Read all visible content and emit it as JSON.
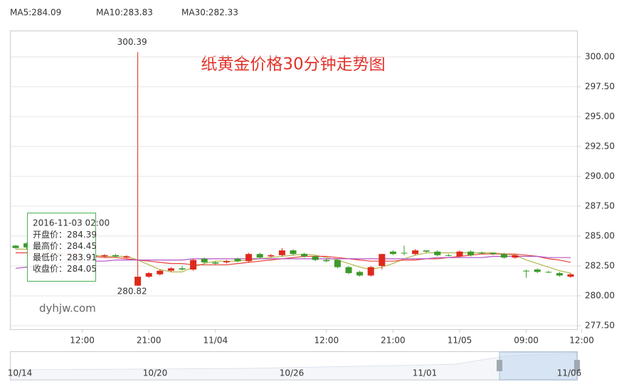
{
  "chart_data": {
    "type": "candlestick",
    "title": "纸黄金价格30分钟走势图",
    "watermark": "dyhjw.com",
    "categories": [
      null,
      null,
      null,
      null,
      null,
      null,
      "12:00",
      null,
      null,
      null,
      null,
      null,
      "21:00",
      null,
      null,
      null,
      null,
      null,
      "11/04",
      null,
      null,
      null,
      null,
      null,
      null,
      null,
      null,
      null,
      "12:00",
      null,
      null,
      null,
      null,
      null,
      "21:00",
      null,
      null,
      null,
      null,
      null,
      "11/05",
      null,
      null,
      null,
      null,
      null,
      "09:00",
      null,
      null,
      null,
      null,
      "12:00"
    ],
    "open": [
      284.2,
      284.39,
      284.0,
      283.8,
      283.6,
      283.4,
      283.5,
      283.4,
      283.3,
      283.4,
      283.2,
      280.85,
      281.6,
      281.8,
      282.1,
      282.3,
      282.2,
      283.1,
      282.8,
      282.8,
      283.1,
      282.9,
      283.5,
      283.3,
      283.4,
      283.8,
      283.5,
      283.3,
      283.0,
      283.0,
      282.4,
      282.0,
      281.7,
      282.5,
      283.7,
      283.6,
      283.5,
      283.8,
      283.7,
      283.4,
      283.3,
      283.7,
      283.6,
      283.6,
      283.5,
      283.2,
      282.1,
      282.2,
      282.0,
      281.9,
      281.6,
      null
    ],
    "high": [
      284.25,
      284.45,
      284.1,
      283.9,
      283.7,
      283.6,
      283.6,
      283.5,
      283.5,
      283.5,
      283.4,
      300.39,
      282.0,
      282.2,
      282.4,
      282.5,
      283.1,
      283.2,
      282.9,
      283.0,
      283.2,
      283.6,
      283.6,
      283.5,
      284.0,
      283.9,
      283.6,
      283.4,
      283.1,
      283.1,
      282.5,
      282.1,
      282.5,
      283.5,
      283.8,
      284.2,
      283.9,
      283.8,
      283.8,
      283.5,
      283.8,
      283.8,
      283.7,
      283.6,
      283.6,
      283.5,
      282.2,
      282.3,
      282.1,
      282.0,
      281.9,
      null
    ],
    "low": [
      283.95,
      283.91,
      283.7,
      283.5,
      283.3,
      283.2,
      283.3,
      283.1,
      283.2,
      283.2,
      283.1,
      280.82,
      281.5,
      281.7,
      282.0,
      282.1,
      282.1,
      282.7,
      282.6,
      282.7,
      282.8,
      282.8,
      283.1,
      283.2,
      283.3,
      283.4,
      283.2,
      282.9,
      282.8,
      282.3,
      281.8,
      281.6,
      281.6,
      282.2,
      283.4,
      283.4,
      283.4,
      283.6,
      283.3,
      283.3,
      283.2,
      283.3,
      283.5,
      283.4,
      283.1,
      283.1,
      281.5,
      281.9,
      281.9,
      281.6,
      281.5,
      null
    ],
    "close": [
      284.0,
      284.05,
      283.8,
      283.6,
      283.4,
      283.5,
      283.4,
      283.3,
      283.4,
      283.3,
      283.3,
      281.6,
      281.9,
      282.1,
      282.3,
      282.2,
      283.0,
      282.8,
      282.7,
      282.9,
      282.9,
      283.5,
      283.2,
      283.4,
      283.8,
      283.5,
      283.3,
      283.0,
      282.9,
      282.4,
      281.9,
      281.7,
      282.4,
      283.5,
      283.5,
      283.6,
      283.8,
      283.7,
      283.4,
      283.4,
      283.7,
      283.4,
      283.6,
      283.5,
      283.2,
      283.4,
      282.1,
      282.0,
      282.0,
      281.7,
      281.8,
      null
    ],
    "up_color": "#dd2a1b",
    "down_color": "#3c9a2a",
    "series": [
      {
        "name": "MA5:284.09",
        "color": "#b3b54a",
        "values": [
          283.9,
          283.9,
          283.8,
          283.7,
          283.6,
          283.5,
          283.4,
          283.4,
          283.3,
          283.3,
          283.3,
          283.0,
          282.6,
          282.2,
          282.0,
          282.0,
          282.4,
          282.7,
          282.9,
          282.9,
          282.9,
          283.0,
          283.1,
          283.2,
          283.3,
          283.4,
          283.5,
          283.4,
          283.2,
          283.0,
          282.7,
          282.4,
          282.2,
          282.4,
          282.7,
          283.1,
          283.4,
          283.6,
          283.6,
          283.6,
          283.6,
          283.6,
          283.6,
          283.6,
          283.5,
          283.4,
          283.0,
          282.7,
          282.4,
          282.1,
          281.9,
          null
        ]
      },
      {
        "name": "MA10:283.83",
        "color": "#e8413a",
        "values": [
          283.6,
          283.6,
          283.6,
          283.5,
          283.4,
          283.4,
          283.3,
          283.3,
          283.2,
          283.2,
          283.1,
          283.0,
          282.9,
          282.8,
          282.7,
          282.7,
          282.6,
          282.6,
          282.6,
          282.6,
          282.7,
          282.8,
          282.9,
          283.0,
          283.1,
          283.2,
          283.3,
          283.3,
          283.3,
          283.2,
          283.1,
          283.0,
          282.9,
          282.9,
          282.9,
          283.0,
          283.0,
          283.1,
          283.1,
          283.2,
          283.3,
          283.4,
          283.5,
          283.5,
          283.5,
          283.5,
          283.4,
          283.3,
          283.1,
          283.0,
          282.8,
          null
        ]
      },
      {
        "name": "MA30:282.33",
        "color": "#b552c6",
        "values": [
          282.3,
          282.4,
          282.5,
          282.6,
          282.7,
          282.8,
          282.8,
          282.9,
          282.9,
          283.0,
          283.0,
          283.0,
          283.0,
          283.0,
          283.0,
          283.0,
          283.1,
          283.1,
          283.1,
          283.1,
          283.1,
          283.1,
          283.1,
          283.1,
          283.1,
          283.1,
          283.1,
          283.1,
          283.1,
          283.1,
          283.1,
          283.1,
          283.1,
          283.1,
          283.1,
          283.1,
          283.1,
          283.1,
          283.2,
          283.2,
          283.2,
          283.2,
          283.2,
          283.3,
          283.3,
          283.3,
          283.3,
          283.3,
          283.2,
          283.2,
          283.2,
          null
        ]
      }
    ],
    "ylim": [
      277.2,
      302.2
    ],
    "yticks": [
      {
        "value": 277.5,
        "label": "277.50"
      },
      {
        "value": 280,
        "label": "280.00"
      },
      {
        "value": 282.5,
        "label": "282.50"
      },
      {
        "value": 285,
        "label": "285.00"
      },
      {
        "value": 287.5,
        "label": "287.50"
      },
      {
        "value": 290,
        "label": "290.00"
      },
      {
        "value": 292.5,
        "label": "292.50"
      },
      {
        "value": 295,
        "label": "295.00"
      },
      {
        "value": 297.5,
        "label": "297.50"
      },
      {
        "value": 300,
        "label": "300.00"
      }
    ],
    "grid": true,
    "tooltip": {
      "title": "2016-11-03 02:00",
      "rows": [
        {
          "label": "开盘价：",
          "value": 284.39
        },
        {
          "label": "最高价：",
          "value": 284.45
        },
        {
          "label": "最低价：",
          "value": 283.91
        },
        {
          "label": "收盘价：",
          "value": 284.05
        }
      ]
    },
    "navigator": {
      "labels": [
        "10/14",
        "10/20",
        "10/26",
        "11/01",
        "11/06"
      ]
    }
  }
}
